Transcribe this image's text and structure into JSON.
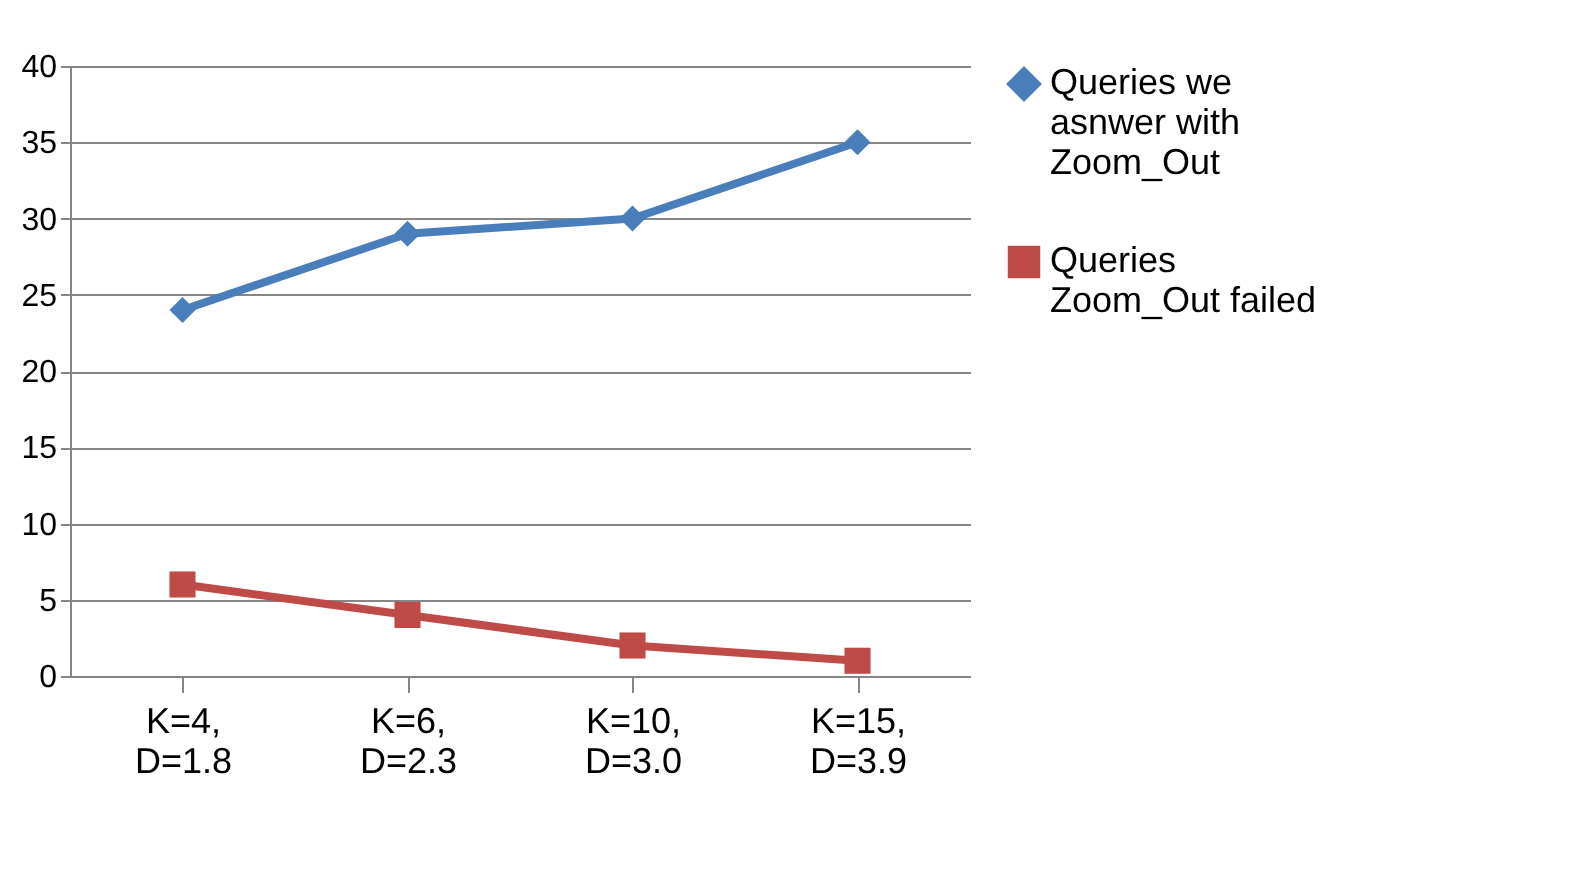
{
  "chart_data": {
    "type": "line",
    "categories": [
      "K=4, D=1.8",
      "K=6, D=2.3",
      "K=10, D=3.0",
      "K=15, D=3.9"
    ],
    "series": [
      {
        "name": "Queries we asnwer with Zoom_Out",
        "color": "#4a7ebb",
        "marker": "diamond",
        "values": [
          24,
          29,
          30,
          35
        ]
      },
      {
        "name": "Queries Zoom_Out failed",
        "color": "#be4b48",
        "marker": "square",
        "values": [
          6,
          4,
          2,
          1
        ]
      }
    ],
    "ylim": [
      0,
      40
    ],
    "yticks": [
      0,
      5,
      10,
      15,
      20,
      25,
      30,
      35,
      40
    ],
    "grid": "y",
    "legend": "right",
    "line_style": "solid"
  }
}
